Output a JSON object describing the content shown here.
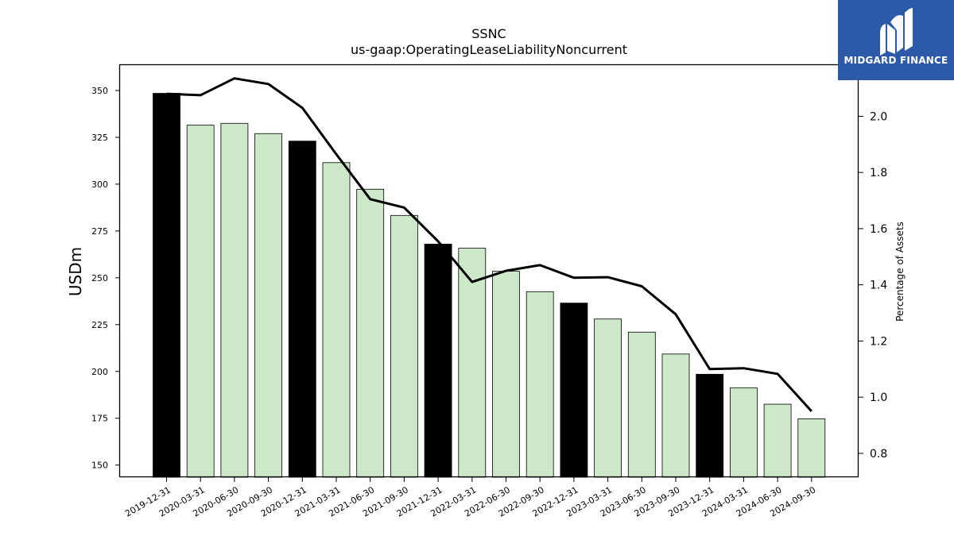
{
  "header": {
    "title": "SSNC",
    "subtitle": "us-gaap:OperatingLeaseLiabilityNoncurrent"
  },
  "logo": {
    "text": "MIDGARD FINANCE",
    "icon": "midgard-logo-icon",
    "background": "#2d5aa8"
  },
  "colors": {
    "bar_year_end": "#000000",
    "bar_quarter": "#cce8c8",
    "line": "#000000"
  },
  "chart_data": {
    "type": "bar",
    "categories": [
      "2019-12-31",
      "2020-03-31",
      "2020-06-30",
      "2020-09-30",
      "2020-12-31",
      "2021-03-31",
      "2021-06-30",
      "2021-09-30",
      "2021-12-31",
      "2022-03-31",
      "2022-06-30",
      "2022-09-30",
      "2022-12-31",
      "2023-03-31",
      "2023-06-30",
      "2023-09-30",
      "2023-12-31",
      "2024-03-31",
      "2024-06-30",
      "2024-09-30"
    ],
    "series": [
      {
        "values": [
          348.5,
          331.5,
          332.5,
          327,
          323,
          311.5,
          297.3,
          283.3,
          268,
          265.8,
          253.5,
          242.6,
          236.5,
          228,
          221,
          209.3,
          198.5,
          191.3,
          182.5,
          174.7
        ],
        "axis": "left"
      },
      {
        "values": [
          2.08,
          2.075,
          2.135,
          2.115,
          2.03,
          1.865,
          1.705,
          1.675,
          1.555,
          1.41,
          1.45,
          1.47,
          1.425,
          1.427,
          1.395,
          1.295,
          1.1,
          1.103,
          1.083,
          0.95
        ],
        "axis": "right"
      }
    ],
    "year_end_flags": [
      true,
      false,
      false,
      false,
      true,
      false,
      false,
      false,
      true,
      false,
      false,
      false,
      true,
      false,
      false,
      false,
      true,
      false,
      false,
      false
    ],
    "ylabel": "USDm",
    "y2label": "Percentage of Assets",
    "ylim": [
      143.5,
      364
    ],
    "y2lim": [
      0.715,
      2.185
    ],
    "yticks": [
      150,
      175,
      200,
      225,
      250,
      275,
      300,
      325,
      350
    ],
    "ytick_labels": [
      "150",
      "175",
      "200",
      "225",
      "250",
      "275",
      "300",
      "325",
      "350"
    ],
    "y2ticks": [
      0.8,
      1.0,
      1.2,
      1.4,
      1.6,
      1.8,
      2.0
    ],
    "y2tick_labels": [
      "0.8",
      "1.0",
      "1.2",
      "1.4",
      "1.6",
      "1.8",
      "2.0"
    ],
    "grid": false,
    "legend": "none"
  }
}
